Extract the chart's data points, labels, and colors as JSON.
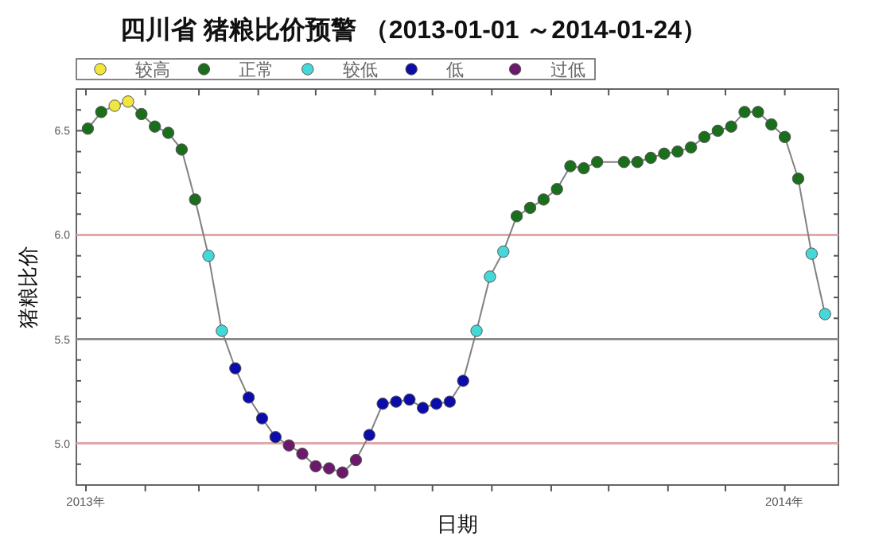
{
  "chart_data": {
    "type": "line",
    "title": "四川省 猪粮比价预警 （2013-01-01 ～2014-01-24）",
    "xlabel": "日期",
    "ylabel": "猪粮比价",
    "xlim": [
      "2012-12-27",
      "2014-01-29"
    ],
    "ylim": [
      4.8,
      6.7
    ],
    "xticks": [
      {
        "value": "2013-01-01",
        "label": "2013年"
      },
      {
        "value": "2013-02-01",
        "label": null
      },
      {
        "value": "2013-03-01",
        "label": null
      },
      {
        "value": "2013-04-01",
        "label": null
      },
      {
        "value": "2013-05-01",
        "label": null
      },
      {
        "value": "2013-06-01",
        "label": null
      },
      {
        "value": "2013-07-01",
        "label": null
      },
      {
        "value": "2013-08-01",
        "label": null
      },
      {
        "value": "2013-09-01",
        "label": null
      },
      {
        "value": "2013-10-01",
        "label": null
      },
      {
        "value": "2013-11-01",
        "label": null
      },
      {
        "value": "2013-12-01",
        "label": null
      },
      {
        "value": "2014-01-01",
        "label": "2014年"
      }
    ],
    "yticks": [
      {
        "value": 4.9,
        "label": null
      },
      {
        "value": 5,
        "label": "5.0"
      },
      {
        "value": 5.1,
        "label": null
      },
      {
        "value": 5.2,
        "label": null
      },
      {
        "value": 5.3,
        "label": null
      },
      {
        "value": 5.4,
        "label": null
      },
      {
        "value": 5.5,
        "label": "5.5"
      },
      {
        "value": 5.6,
        "label": null
      },
      {
        "value": 5.7,
        "label": null
      },
      {
        "value": 5.8,
        "label": null
      },
      {
        "value": 5.9,
        "label": null
      },
      {
        "value": 6,
        "label": "6.0"
      },
      {
        "value": 6.1,
        "label": null
      },
      {
        "value": 6.2,
        "label": null
      },
      {
        "value": 6.3,
        "label": null
      },
      {
        "value": 6.4,
        "label": null
      },
      {
        "value": 6.5,
        "label": "6.5"
      },
      {
        "value": 6.6,
        "label": null
      }
    ],
    "grid": false,
    "legend": "top",
    "marker": "circle",
    "ref_lines": [
      {
        "axis": "y",
        "value": 6,
        "color": "#e0a8a8"
      },
      {
        "axis": "y",
        "value": 5.5,
        "color": "#8c8c8c"
      },
      {
        "axis": "y",
        "value": 5,
        "color": "#e0a8a8"
      }
    ],
    "series": [
      {
        "marker": "none",
        "color": "#808080",
        "x": [
          "2013-01-02",
          "2013-01-09",
          "2013-01-16",
          "2013-01-23",
          "2013-01-30",
          "2013-02-06",
          "2013-02-13",
          "2013-02-20",
          "2013-02-27",
          "2013-03-06",
          "2013-03-13",
          "2013-03-20",
          "2013-03-27",
          "2013-04-03",
          "2013-04-10",
          "2013-04-17",
          "2013-04-24",
          "2013-05-01",
          "2013-05-08",
          "2013-05-15",
          "2013-05-22",
          "2013-05-29",
          "2013-06-05",
          "2013-06-12",
          "2013-06-19",
          "2013-06-26",
          "2013-07-03",
          "2013-07-10",
          "2013-07-17",
          "2013-07-24",
          "2013-07-31",
          "2013-08-07",
          "2013-08-14",
          "2013-08-21",
          "2013-08-28",
          "2013-09-04",
          "2013-09-11",
          "2013-09-18",
          "2013-09-25",
          "2013-10-09",
          "2013-10-16",
          "2013-10-23",
          "2013-10-30",
          "2013-11-06",
          "2013-11-13",
          "2013-11-20",
          "2013-11-27",
          "2013-12-04",
          "2013-12-11",
          "2013-12-18",
          "2013-12-25",
          "2014-01-01",
          "2014-01-08",
          "2014-01-15",
          "2014-01-22"
        ],
        "values": [
          6.51,
          6.59,
          6.62,
          6.64,
          6.58,
          6.52,
          6.49,
          6.41,
          6.17,
          5.9,
          5.54,
          5.36,
          5.22,
          5.12,
          5.03,
          4.99,
          4.95,
          4.89,
          4.88,
          4.86,
          4.92,
          5.04,
          5.19,
          5.2,
          5.21,
          5.17,
          5.19,
          5.2,
          5.3,
          5.54,
          5.8,
          5.92,
          6.09,
          6.13,
          6.17,
          6.22,
          6.33,
          6.32,
          6.35,
          6.35,
          6.35,
          6.37,
          6.39,
          6.4,
          6.42,
          6.47,
          6.5,
          6.52,
          6.59,
          6.59,
          6.53,
          6.47,
          6.27,
          5.91,
          5.62
        ]
      },
      {
        "type": "scatter",
        "name": "较高",
        "color": "#f0e63c",
        "x": [
          "2013-01-16",
          "2013-01-23"
        ],
        "values": [
          6.62,
          6.64
        ]
      },
      {
        "type": "scatter",
        "name": "正常",
        "color": "#1b6e1b",
        "x": [
          "2013-01-02",
          "2013-01-09",
          "2013-01-30",
          "2013-02-06",
          "2013-02-13",
          "2013-02-20",
          "2013-02-27",
          "2013-08-14",
          "2013-08-21",
          "2013-08-28",
          "2013-09-04",
          "2013-09-11",
          "2013-09-18",
          "2013-09-25",
          "2013-10-09",
          "2013-10-16",
          "2013-10-23",
          "2013-10-30",
          "2013-11-06",
          "2013-11-13",
          "2013-11-20",
          "2013-11-27",
          "2013-12-04",
          "2013-12-11",
          "2013-12-18",
          "2013-12-25",
          "2014-01-01",
          "2014-01-08"
        ],
        "values": [
          6.51,
          6.59,
          6.58,
          6.52,
          6.49,
          6.41,
          6.17,
          6.09,
          6.13,
          6.17,
          6.22,
          6.33,
          6.32,
          6.35,
          6.35,
          6.35,
          6.37,
          6.39,
          6.4,
          6.42,
          6.47,
          6.5,
          6.52,
          6.59,
          6.59,
          6.53,
          6.47,
          6.27
        ]
      },
      {
        "type": "scatter",
        "name": "较低",
        "color": "#44d8d8",
        "x": [
          "2013-03-06",
          "2013-03-13",
          "2013-07-24",
          "2013-07-31",
          "2013-08-07",
          "2014-01-15",
          "2014-01-22"
        ],
        "values": [
          5.9,
          5.54,
          5.54,
          5.8,
          5.92,
          5.91,
          5.62
        ]
      },
      {
        "type": "scatter",
        "name": "低",
        "color": "#0c0cab",
        "x": [
          "2013-03-20",
          "2013-03-27",
          "2013-04-03",
          "2013-04-10",
          "2013-05-29",
          "2013-06-05",
          "2013-06-12",
          "2013-06-19",
          "2013-06-26",
          "2013-07-03",
          "2013-07-10",
          "2013-07-17"
        ],
        "values": [
          5.36,
          5.22,
          5.12,
          5.03,
          5.04,
          5.19,
          5.2,
          5.21,
          5.17,
          5.19,
          5.2,
          5.3
        ]
      },
      {
        "type": "scatter",
        "name": "过低",
        "color": "#6b1a6b",
        "x": [
          "2013-04-17",
          "2013-04-24",
          "2013-05-01",
          "2013-05-08",
          "2013-05-15",
          "2013-05-22"
        ],
        "values": [
          4.99,
          4.95,
          4.89,
          4.88,
          4.86,
          4.92
        ]
      }
    ]
  }
}
